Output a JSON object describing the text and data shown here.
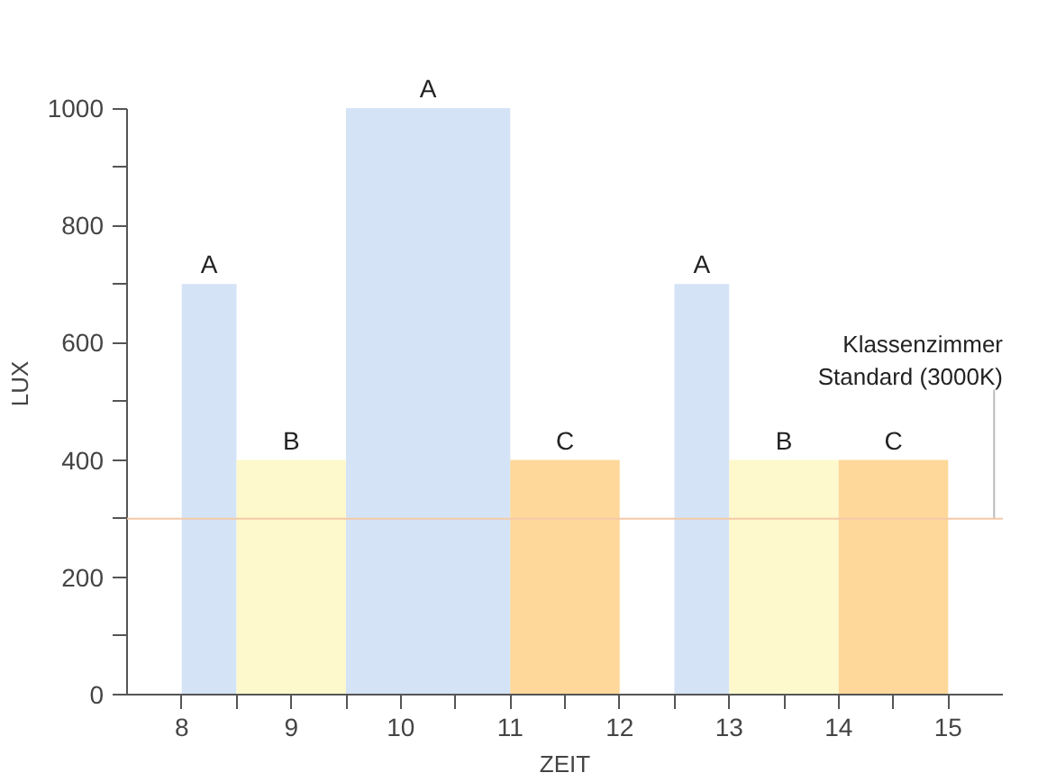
{
  "chart_data": {
    "type": "histogram",
    "bins": [
      8,
      8.5,
      9.5,
      11,
      12,
      12.5,
      13,
      14,
      15
    ],
    "values": [
      700,
      400,
      1000,
      400,
      null,
      700,
      400,
      400
    ],
    "colors": [
      "#d4e3f5",
      "#fdf9cc",
      "#d4e3f5",
      "#fdd89a",
      "#ffffff",
      "#d4e3f5",
      "#fdf9cc",
      "#fdd89a"
    ],
    "xlabel": "ZEIT",
    "ylabel": "LUX",
    "xlim": [
      7.5,
      15.5
    ],
    "ylim": [
      0,
      1000
    ],
    "xticks": [
      8,
      {
        "value": 8.5,
        "label": null
      },
      9,
      {
        "value": 9.5,
        "label": null
      },
      10,
      {
        "value": 10.5,
        "label": null
      },
      11,
      {
        "value": 11.5,
        "label": null
      },
      12,
      {
        "value": 12.5,
        "label": null
      },
      13,
      {
        "value": 13.5,
        "label": null
      },
      14,
      {
        "value": 14.5,
        "label": null
      },
      15
    ],
    "yticks": [
      0,
      {
        "value": 100,
        "label": null
      },
      200,
      {
        "value": 300,
        "label": null
      },
      400,
      {
        "value": 500,
        "label": null
      },
      600,
      {
        "value": 700,
        "label": null
      },
      800,
      {
        "value": 900,
        "label": null
      },
      1000
    ],
    "grid": false,
    "ref_lines": [
      {
        "axis": "y",
        "value": 300,
        "label": "Klassenzimmer\nStandard (3000K)",
        "color": "#f4c9a8"
      }
    ],
    "annotations": [
      {
        "text": "A",
        "x": 8.25,
        "y": 700
      },
      {
        "text": "B",
        "x": 9,
        "y": 400
      },
      {
        "text": "A",
        "x": 10.25,
        "y": 1000
      },
      {
        "text": "C",
        "x": 11.5,
        "y": 400
      },
      {
        "text": "A",
        "x": 12.75,
        "y": 700
      },
      {
        "text": "B",
        "x": 13.5,
        "y": 400
      },
      {
        "text": "C",
        "x": 14.5,
        "y": 400
      }
    ]
  }
}
